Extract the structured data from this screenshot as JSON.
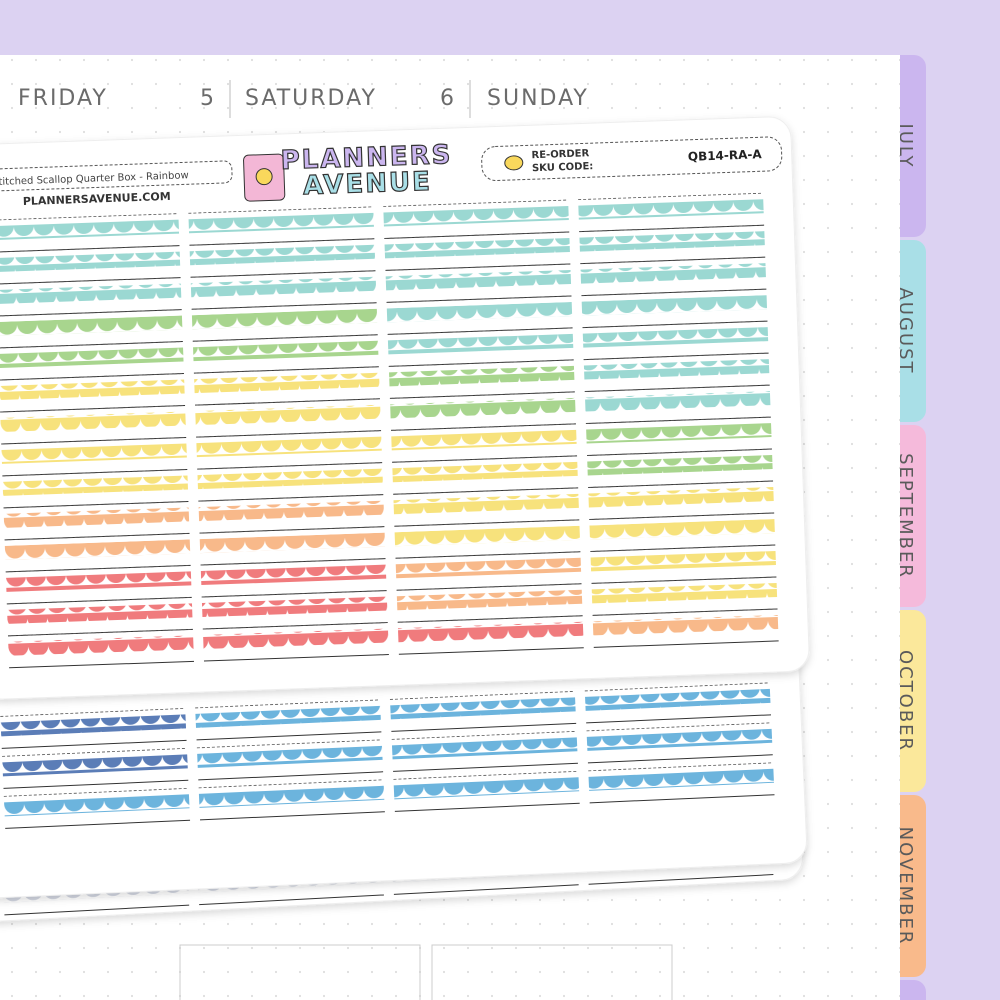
{
  "header": {
    "days": [
      {
        "label": "FRIDAY"
      },
      {
        "number": "5",
        "label": "SATURDAY"
      },
      {
        "number": "6",
        "label": "SUNDAY"
      }
    ]
  },
  "tabs": [
    "JULY",
    "AUGUST",
    "SEPTEMBER",
    "OCTOBER",
    "NOVEMBER"
  ],
  "sheet": {
    "name": "Stitched Scallop Quarter Box - Rainbow",
    "website": "PLANNERSAVENUE.COM",
    "logo": [
      "PLANNERS",
      "AVENUE"
    ],
    "reorder": [
      "RE-ORDER",
      "SKU CODE:"
    ],
    "sku": "QB14-RA-A"
  }
}
